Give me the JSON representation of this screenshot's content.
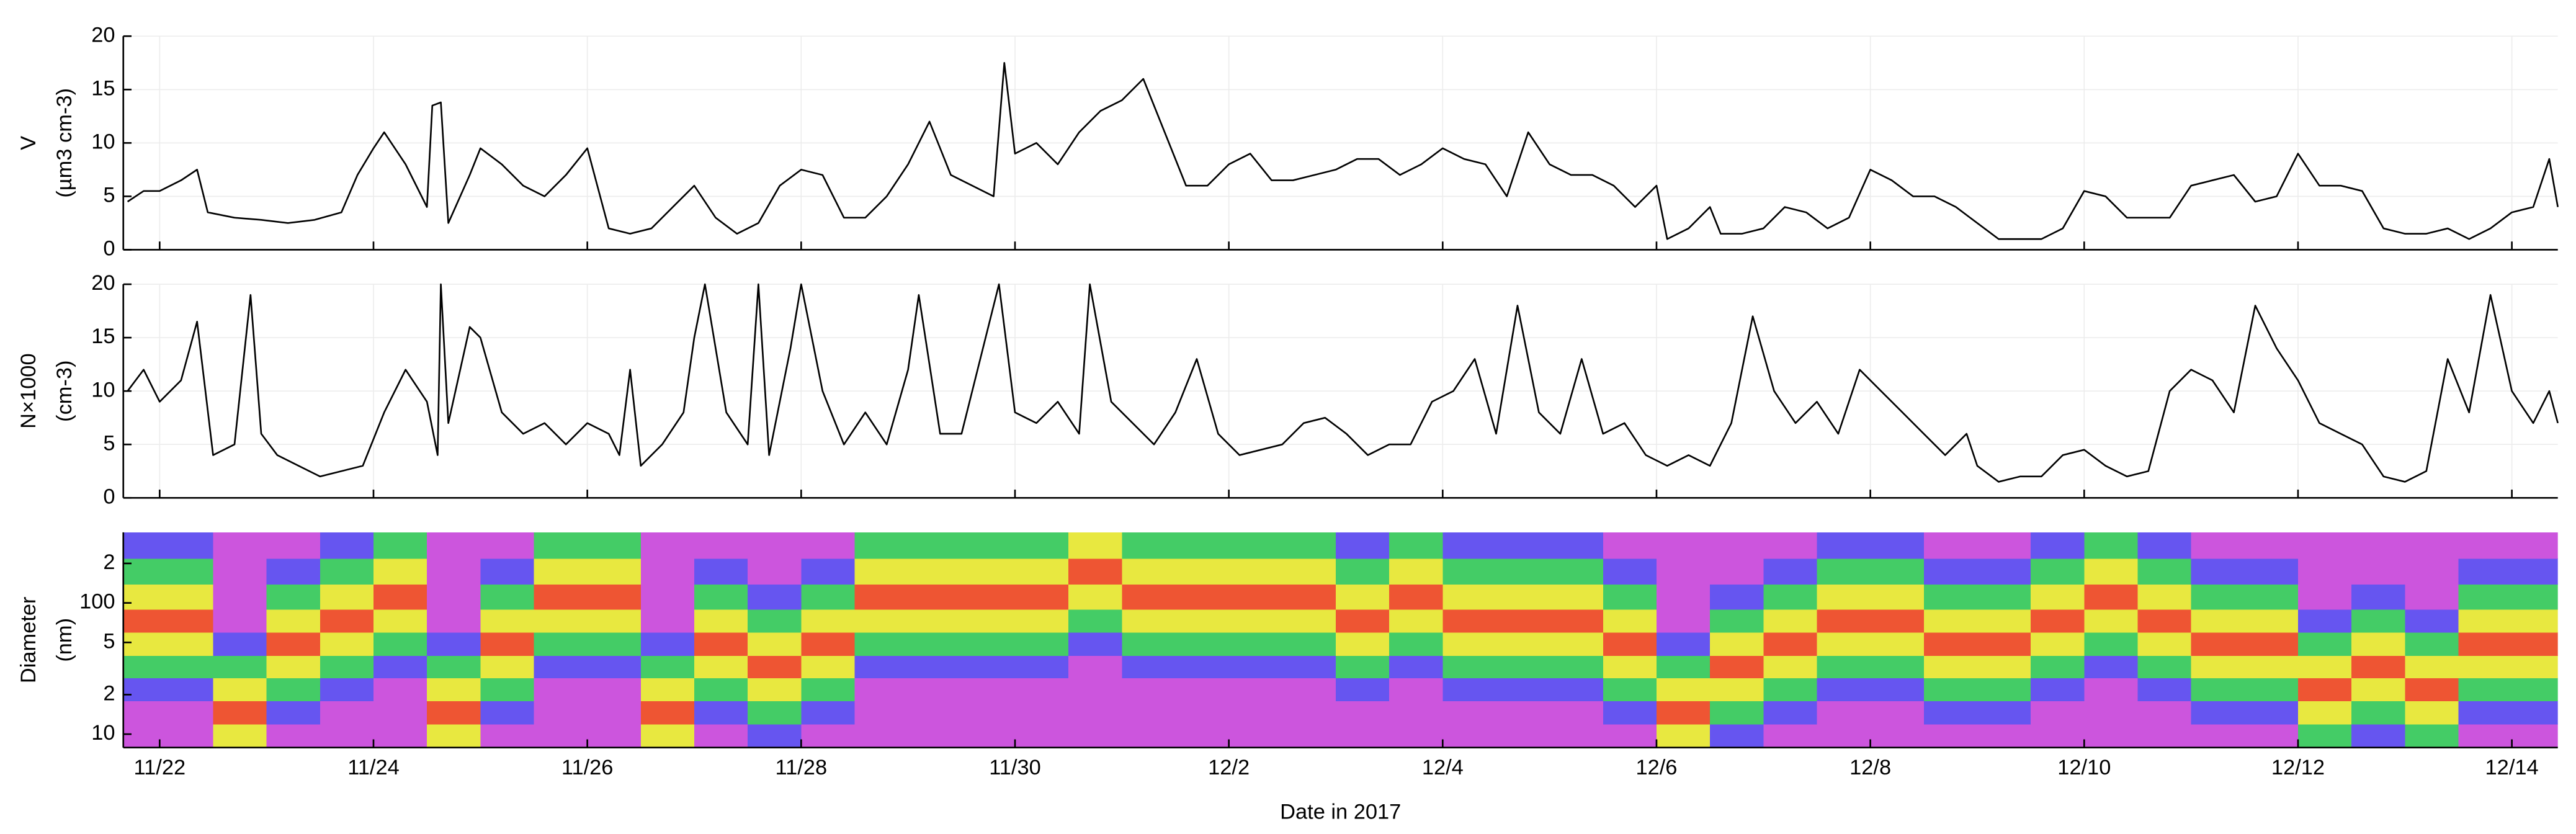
{
  "chart_data": [
    {
      "type": "line",
      "ylabel": [
        "V",
        "(µm3 cm-3)"
      ],
      "color": "#000000",
      "grid": true,
      "xlim": [
        21.66,
        44.43
      ],
      "ylim": [
        0,
        20
      ],
      "yticks": [
        0,
        5,
        10,
        15,
        20
      ],
      "x": [
        21.7,
        21.85,
        22.0,
        22.2,
        22.35,
        22.45,
        22.7,
        22.95,
        23.2,
        23.45,
        23.7,
        23.85,
        24.0,
        24.1,
        24.3,
        24.5,
        24.55,
        24.63,
        24.7,
        24.9,
        25.0,
        25.2,
        25.4,
        25.6,
        25.8,
        26.0,
        26.2,
        26.4,
        26.6,
        26.8,
        27.0,
        27.2,
        27.4,
        27.6,
        27.8,
        28.0,
        28.2,
        28.4,
        28.6,
        28.8,
        29.0,
        29.2,
        29.4,
        29.6,
        29.8,
        29.9,
        30.0,
        30.2,
        30.4,
        30.6,
        30.8,
        31.0,
        31.2,
        31.4,
        31.6,
        31.8,
        32.0,
        32.2,
        32.4,
        32.6,
        32.8,
        33.0,
        33.2,
        33.4,
        33.6,
        33.8,
        34.0,
        34.2,
        34.4,
        34.6,
        34.8,
        35.0,
        35.2,
        35.4,
        35.6,
        35.8,
        36.0,
        36.1,
        36.3,
        36.5,
        36.6,
        36.8,
        37.0,
        37.2,
        37.4,
        37.6,
        37.8,
        38.0,
        38.2,
        38.4,
        38.6,
        38.8,
        39.0,
        39.2,
        39.4,
        39.6,
        39.8,
        40.0,
        40.2,
        40.4,
        40.6,
        40.8,
        41.0,
        41.2,
        41.4,
        41.6,
        41.8,
        42.0,
        42.2,
        42.4,
        42.6,
        42.8,
        43.0,
        43.2,
        43.4,
        43.6,
        43.8,
        44.0,
        44.2,
        44.35,
        44.43
      ],
      "values": [
        4.5,
        5.5,
        5.5,
        6.5,
        7.5,
        3.5,
        3,
        2.8,
        2.5,
        2.8,
        3.5,
        7,
        9.5,
        11,
        8,
        4,
        13.5,
        13.8,
        2.5,
        7,
        9.5,
        8,
        6,
        5,
        7,
        9.5,
        2,
        1.5,
        2,
        4,
        6,
        3,
        1.5,
        2.5,
        6,
        7.5,
        7,
        3,
        3,
        5,
        8,
        12,
        7,
        6,
        5,
        17.5,
        9,
        10,
        8,
        11,
        13,
        14,
        16,
        11,
        6,
        6,
        8,
        9,
        6.5,
        6.5,
        7,
        7.5,
        8.5,
        8.5,
        7,
        8,
        9.5,
        8.5,
        8,
        5,
        11,
        8,
        7,
        7,
        6,
        4,
        6,
        1,
        2,
        4,
        1.5,
        1.5,
        2,
        4,
        3.5,
        2,
        3,
        7.5,
        6.5,
        5,
        5,
        4,
        2.5,
        1,
        1,
        1,
        2,
        5.5,
        5,
        3,
        3,
        3,
        6,
        6.5,
        7,
        4.5,
        5,
        9,
        6,
        6,
        5.5,
        2,
        1.5,
        1.5,
        2,
        1,
        2,
        3.5,
        4,
        8.5,
        4
      ]
    },
    {
      "type": "line",
      "ylabel": [
        "N×1000",
        "(cm-3)"
      ],
      "color": "#000000",
      "grid": true,
      "xlim": [
        21.66,
        44.43
      ],
      "ylim": [
        0,
        20
      ],
      "yticks": [
        0,
        5,
        10,
        15,
        20
      ],
      "x": [
        21.7,
        21.85,
        22.0,
        22.2,
        22.35,
        22.5,
        22.7,
        22.85,
        22.95,
        23.1,
        23.3,
        23.5,
        23.7,
        23.9,
        24.1,
        24.3,
        24.5,
        24.6,
        24.63,
        24.7,
        24.9,
        25.0,
        25.2,
        25.4,
        25.6,
        25.8,
        26.0,
        26.2,
        26.3,
        26.4,
        26.5,
        26.7,
        26.9,
        27.0,
        27.1,
        27.3,
        27.5,
        27.6,
        27.7,
        27.9,
        28.0,
        28.2,
        28.4,
        28.6,
        28.8,
        29.0,
        29.1,
        29.3,
        29.5,
        29.7,
        29.85,
        30.0,
        30.2,
        30.4,
        30.6,
        30.7,
        30.9,
        31.1,
        31.3,
        31.5,
        31.7,
        31.9,
        32.1,
        32.3,
        32.5,
        32.7,
        32.9,
        33.1,
        33.3,
        33.5,
        33.7,
        33.9,
        34.1,
        34.3,
        34.5,
        34.7,
        34.9,
        35.1,
        35.3,
        35.5,
        35.7,
        35.9,
        36.1,
        36.3,
        36.5,
        36.7,
        36.9,
        37.1,
        37.3,
        37.5,
        37.7,
        37.9,
        38.1,
        38.3,
        38.5,
        38.7,
        38.9,
        39.0,
        39.2,
        39.4,
        39.6,
        39.8,
        40.0,
        40.2,
        40.4,
        40.6,
        40.8,
        41.0,
        41.2,
        41.4,
        41.6,
        41.8,
        42.0,
        42.2,
        42.4,
        42.6,
        42.8,
        43.0,
        43.2,
        43.4,
        43.6,
        43.8,
        44.0,
        44.2,
        44.35,
        44.43
      ],
      "values": [
        10,
        12,
        9,
        11,
        16.5,
        4,
        5,
        19,
        6,
        4,
        3,
        2,
        2.5,
        3,
        8,
        12,
        9,
        4,
        20,
        7,
        16,
        15,
        8,
        6,
        7,
        5,
        7,
        6,
        4,
        12,
        3,
        5,
        8,
        15,
        20,
        8,
        5,
        20,
        4,
        14,
        20,
        10,
        5,
        8,
        5,
        12,
        19,
        6,
        6,
        14,
        20,
        8,
        7,
        9,
        6,
        20,
        9,
        7,
        5,
        8,
        13,
        6,
        4,
        4.5,
        5,
        7,
        7.5,
        6,
        4,
        5,
        5,
        9,
        10,
        13,
        6,
        18,
        8,
        6,
        13,
        6,
        7,
        4,
        3,
        4,
        3,
        7,
        17,
        10,
        7,
        9,
        6,
        12,
        10,
        8,
        6,
        4,
        6,
        3,
        1.5,
        2,
        2,
        4,
        4.5,
        3,
        2,
        2.5,
        10,
        12,
        11,
        8,
        18,
        14,
        11,
        7,
        6,
        5,
        2,
        1.5,
        2.5,
        13,
        8,
        19,
        10,
        7,
        10,
        7
      ]
    },
    {
      "type": "heatmap",
      "ylabel": [
        "Diameter",
        "(nm)"
      ],
      "xlabel": "Date in 2017",
      "ylog": true,
      "xlim": [
        21.66,
        44.43
      ],
      "ylim": [
        7.9,
        345
      ],
      "xticks": [
        {
          "value": 22,
          "label": "11/22"
        },
        {
          "value": 24,
          "label": "11/24"
        },
        {
          "value": 26,
          "label": "11/26"
        },
        {
          "value": 28,
          "label": "11/28"
        },
        {
          "value": 30,
          "label": "11/30"
        },
        {
          "value": 32,
          "label": "12/2"
        },
        {
          "value": 34,
          "label": "12/4"
        },
        {
          "value": 36,
          "label": "12/6"
        },
        {
          "value": 38,
          "label": "12/8"
        },
        {
          "value": 40,
          "label": "12/10"
        },
        {
          "value": 42,
          "label": "12/12"
        },
        {
          "value": 44,
          "label": "12/14"
        }
      ],
      "yticks": [
        {
          "value": 200,
          "label": "2"
        },
        100,
        {
          "value": 50,
          "label": "5"
        },
        {
          "value": 20,
          "label": "2"
        },
        10
      ],
      "xbins": [
        21.5,
        22.0,
        22.5,
        23.0,
        23.5,
        24.0,
        24.5,
        25.0,
        25.5,
        26.0,
        26.5,
        27.0,
        27.5,
        28.0,
        28.5,
        29.0,
        29.5,
        30.0,
        30.5,
        31.0,
        31.5,
        32.0,
        32.5,
        33.0,
        33.5,
        34.0,
        34.5,
        35.0,
        35.5,
        36.0,
        36.5,
        37.0,
        37.5,
        38.0,
        38.5,
        39.0,
        39.5,
        40.0,
        40.5,
        41.0,
        41.5,
        42.0,
        42.5,
        43.0,
        43.5,
        44.0,
        44.5
      ],
      "ybins": [
        7.9,
        12,
        18,
        27,
        40,
        60,
        90,
        140,
        220,
        345
      ],
      "zlim": [
        1,
        9
      ],
      "colormap": [
        "#cc55dd",
        "#9955ee",
        "#6655f0",
        "#4a9ae0",
        "#44cc66",
        "#99dd44",
        "#e8e840",
        "#f0a030",
        "#ee5533"
      ],
      "z": [
        [
          1,
          1,
          3,
          5,
          7,
          9,
          7,
          5,
          3
        ],
        [
          1,
          1,
          3,
          5,
          7,
          9,
          7,
          5,
          3
        ],
        [
          7,
          9,
          7,
          5,
          3,
          1,
          1,
          1,
          1
        ],
        [
          1,
          3,
          5,
          7,
          9,
          7,
          5,
          3,
          1
        ],
        [
          1,
          1,
          3,
          5,
          7,
          9,
          7,
          5,
          3
        ],
        [
          1,
          1,
          1,
          3,
          5,
          7,
          9,
          7,
          5
        ],
        [
          7,
          9,
          7,
          5,
          3,
          1,
          1,
          1,
          1
        ],
        [
          1,
          3,
          5,
          7,
          9,
          7,
          5,
          3,
          1
        ],
        [
          1,
          1,
          1,
          3,
          5,
          7,
          9,
          7,
          5
        ],
        [
          1,
          1,
          1,
          3,
          5,
          7,
          9,
          7,
          5
        ],
        [
          7,
          9,
          7,
          5,
          3,
          1,
          1,
          1,
          1
        ],
        [
          1,
          3,
          5,
          7,
          9,
          7,
          5,
          3,
          1
        ],
        [
          3,
          5,
          7,
          9,
          7,
          5,
          3,
          1,
          1
        ],
        [
          1,
          3,
          5,
          7,
          9,
          7,
          5,
          3,
          1
        ],
        [
          1,
          1,
          1,
          3,
          5,
          7,
          9,
          7,
          5
        ],
        [
          1,
          1,
          1,
          3,
          5,
          7,
          9,
          7,
          5
        ],
        [
          1,
          1,
          1,
          3,
          5,
          7,
          9,
          7,
          5
        ],
        [
          1,
          1,
          1,
          3,
          5,
          7,
          9,
          7,
          5
        ],
        [
          1,
          1,
          1,
          1,
          3,
          5,
          7,
          9,
          7
        ],
        [
          1,
          1,
          1,
          3,
          5,
          7,
          9,
          7,
          5
        ],
        [
          1,
          1,
          1,
          3,
          5,
          7,
          9,
          7,
          5
        ],
        [
          1,
          1,
          1,
          3,
          5,
          7,
          9,
          7,
          5
        ],
        [
          1,
          1,
          1,
          3,
          5,
          7,
          9,
          7,
          5
        ],
        [
          1,
          1,
          3,
          5,
          7,
          9,
          7,
          5,
          3
        ],
        [
          1,
          1,
          1,
          3,
          5,
          7,
          9,
          7,
          5
        ],
        [
          1,
          1,
          3,
          5,
          7,
          9,
          7,
          5,
          3
        ],
        [
          1,
          1,
          3,
          5,
          7,
          9,
          7,
          5,
          3
        ],
        [
          1,
          1,
          3,
          5,
          7,
          9,
          7,
          5,
          3
        ],
        [
          1,
          3,
          5,
          7,
          9,
          7,
          5,
          3,
          1
        ],
        [
          7,
          9,
          7,
          5,
          3,
          1,
          1,
          1,
          1
        ],
        [
          3,
          5,
          7,
          9,
          7,
          5,
          3,
          1,
          1
        ],
        [
          1,
          3,
          5,
          7,
          9,
          7,
          5,
          3,
          1
        ],
        [
          1,
          1,
          3,
          5,
          7,
          9,
          7,
          5,
          3
        ],
        [
          1,
          1,
          3,
          5,
          7,
          9,
          7,
          5,
          3
        ],
        [
          1,
          3,
          5,
          7,
          9,
          7,
          5,
          3,
          1
        ],
        [
          1,
          3,
          5,
          7,
          9,
          7,
          5,
          3,
          1
        ],
        [
          1,
          1,
          3,
          5,
          7,
          9,
          7,
          5,
          3
        ],
        [
          1,
          1,
          1,
          3,
          5,
          7,
          9,
          7,
          5
        ],
        [
          1,
          1,
          3,
          5,
          7,
          9,
          7,
          5,
          3
        ],
        [
          1,
          3,
          5,
          7,
          9,
          7,
          5,
          3,
          1
        ],
        [
          1,
          3,
          5,
          7,
          9,
          7,
          5,
          3,
          1
        ],
        [
          5,
          7,
          9,
          7,
          5,
          3,
          1,
          1,
          1
        ],
        [
          3,
          5,
          7,
          9,
          7,
          5,
          3,
          1,
          1
        ],
        [
          5,
          7,
          9,
          7,
          5,
          3,
          1,
          1,
          1
        ],
        [
          1,
          3,
          5,
          7,
          9,
          7,
          5,
          3,
          1
        ],
        [
          1,
          3,
          5,
          7,
          9,
          7,
          5,
          3,
          1
        ]
      ]
    }
  ]
}
